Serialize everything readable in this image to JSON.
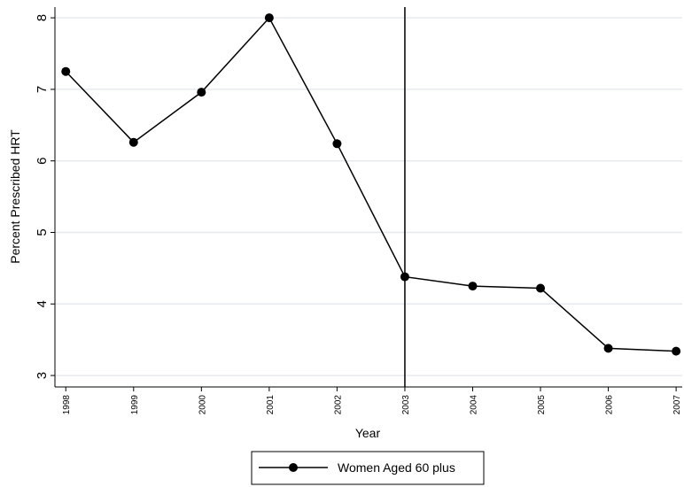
{
  "chart_data": {
    "type": "line",
    "x": [
      1998,
      1999,
      2000,
      2001,
      2002,
      2003,
      2004,
      2005,
      2006,
      2007
    ],
    "series": [
      {
        "name": "Women Aged 60 plus",
        "color": "#000000",
        "values": [
          7.25,
          6.26,
          6.96,
          8.0,
          6.24,
          4.38,
          4.25,
          4.22,
          3.38,
          3.34
        ]
      }
    ],
    "xlabel": "Year",
    "ylabel": "Percent Prescribed HRT",
    "xlim": [
      1997.84,
      2007.09
    ],
    "xticks": [
      1998,
      1999,
      2000,
      2001,
      2002,
      2003,
      2004,
      2005,
      2006,
      2007
    ],
    "ylim": [
      2.84,
      8.15
    ],
    "yticks": [
      3,
      4,
      5,
      6,
      7,
      8
    ],
    "grid": true,
    "vline": 2003,
    "legend": "bottom"
  }
}
